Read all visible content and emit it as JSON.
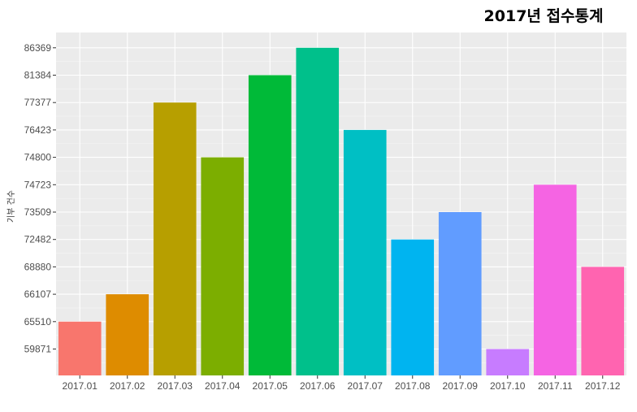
{
  "chart_data": {
    "type": "bar",
    "title": "2017년 접수통계",
    "xlabel": "",
    "ylabel": "기부 건수",
    "categories": [
      "2017.01",
      "2017.02",
      "2017.03",
      "2017.04",
      "2017.05",
      "2017.06",
      "2017.07",
      "2017.08",
      "2017.09",
      "2017.10",
      "2017.11",
      "2017.12"
    ],
    "values": [
      65510,
      66107,
      77377,
      74800,
      81384,
      86369,
      76423,
      72482,
      73509,
      59871,
      74723,
      68880
    ],
    "y_axis": {
      "scale": "ordinal (tick labels are the bar values sorted ascending, equally spaced)",
      "tick_labels": [
        "59871",
        "65510",
        "66107",
        "68880",
        "72482",
        "73509",
        "74723",
        "74800",
        "76423",
        "77377",
        "81384",
        "86369"
      ]
    },
    "colors": [
      "#F8766D",
      "#DE8C00",
      "#B79F00",
      "#7CAE00",
      "#00BA38",
      "#00C08B",
      "#00BFC4",
      "#00B4F0",
      "#619CFF",
      "#C77CFF",
      "#F564E3",
      "#FF64B0"
    ],
    "panel_background": "#EBEBEB",
    "grid": true,
    "legend": "none"
  }
}
